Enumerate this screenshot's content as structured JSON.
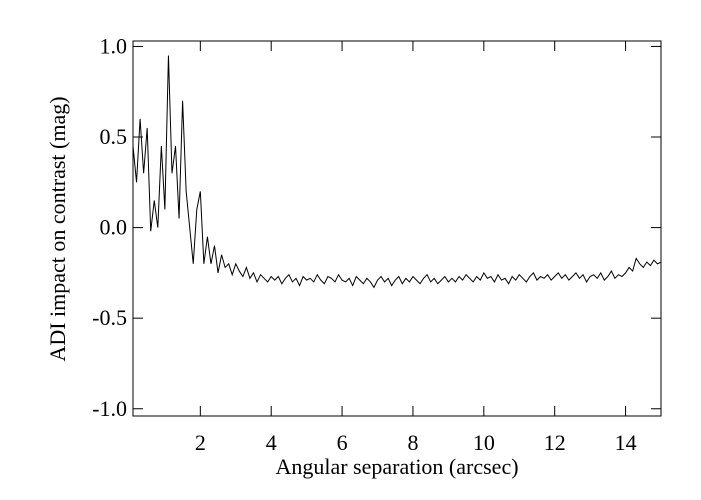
{
  "chart_data": {
    "type": "line",
    "x_label": "Angular separation (arcsec)",
    "y_label": "ADI impact on contrast (mag)",
    "color": "#000000",
    "xlim": [
      0.1,
      15.0
    ],
    "ylim": [
      -1.04,
      1.03
    ],
    "xticks": [
      2,
      4,
      6,
      8,
      10,
      12,
      14
    ],
    "yticks": [
      {
        "value": -1,
        "label": "-1.0"
      },
      -0.5,
      {
        "value": 0,
        "label": "0.0"
      },
      0.5,
      {
        "value": 1,
        "label": "1.0"
      }
    ],
    "x": [
      0.1,
      0.2,
      0.3,
      0.4,
      0.5,
      0.6,
      0.7,
      0.8,
      0.9,
      1.0,
      1.1,
      1.2,
      1.3,
      1.4,
      1.5,
      1.6,
      1.7,
      1.8,
      1.9,
      2.0,
      2.1,
      2.2,
      2.3,
      2.4,
      2.5,
      2.6,
      2.7,
      2.8,
      2.9,
      3.0,
      3.1,
      3.2,
      3.3,
      3.4,
      3.5,
      3.6,
      3.7,
      3.8,
      3.9,
      4.0,
      4.1,
      4.2,
      4.3,
      4.4,
      4.5,
      4.6,
      4.7,
      4.8,
      4.9,
      5.0,
      5.1,
      5.2,
      5.3,
      5.4,
      5.5,
      5.6,
      5.7,
      5.8,
      5.9,
      6.0,
      6.1,
      6.2,
      6.3,
      6.4,
      6.5,
      6.6,
      6.7,
      6.8,
      6.9,
      7.0,
      7.1,
      7.2,
      7.3,
      7.4,
      7.5,
      7.6,
      7.7,
      7.8,
      7.9,
      8.0,
      8.1,
      8.2,
      8.3,
      8.4,
      8.5,
      8.6,
      8.7,
      8.8,
      8.9,
      9.0,
      9.1,
      9.2,
      9.3,
      9.4,
      9.5,
      9.6,
      9.7,
      9.8,
      9.9,
      10.0,
      10.1,
      10.2,
      10.3,
      10.4,
      10.5,
      10.6,
      10.7,
      10.8,
      10.9,
      11.0,
      11.1,
      11.2,
      11.3,
      11.4,
      11.5,
      11.6,
      11.7,
      11.8,
      11.9,
      12.0,
      12.1,
      12.2,
      12.3,
      12.4,
      12.5,
      12.6,
      12.7,
      12.8,
      12.9,
      13.0,
      13.1,
      13.2,
      13.3,
      13.4,
      13.5,
      13.6,
      13.7,
      13.8,
      13.9,
      14.0,
      14.1,
      14.2,
      14.3,
      14.4,
      14.5,
      14.6,
      14.7,
      14.8,
      14.9,
      15.0
    ],
    "values": [
      0.45,
      0.25,
      0.6,
      0.3,
      0.55,
      -0.02,
      0.15,
      0.0,
      0.45,
      0.1,
      0.95,
      0.3,
      0.45,
      0.05,
      0.7,
      0.2,
      0.0,
      -0.2,
      0.1,
      0.2,
      -0.2,
      -0.05,
      -0.2,
      -0.1,
      -0.25,
      -0.15,
      -0.22,
      -0.2,
      -0.26,
      -0.2,
      -0.24,
      -0.27,
      -0.22,
      -0.28,
      -0.25,
      -0.3,
      -0.26,
      -0.28,
      -0.3,
      -0.27,
      -0.29,
      -0.27,
      -0.31,
      -0.28,
      -0.26,
      -0.3,
      -0.28,
      -0.32,
      -0.27,
      -0.29,
      -0.28,
      -0.3,
      -0.26,
      -0.29,
      -0.31,
      -0.27,
      -0.28,
      -0.3,
      -0.26,
      -0.29,
      -0.3,
      -0.28,
      -0.32,
      -0.27,
      -0.29,
      -0.31,
      -0.28,
      -0.3,
      -0.33,
      -0.29,
      -0.27,
      -0.3,
      -0.28,
      -0.32,
      -0.29,
      -0.27,
      -0.31,
      -0.28,
      -0.3,
      -0.27,
      -0.29,
      -0.31,
      -0.28,
      -0.26,
      -0.3,
      -0.28,
      -0.31,
      -0.29,
      -0.27,
      -0.3,
      -0.28,
      -0.3,
      -0.27,
      -0.29,
      -0.26,
      -0.28,
      -0.3,
      -0.27,
      -0.29,
      -0.25,
      -0.28,
      -0.27,
      -0.3,
      -0.26,
      -0.29,
      -0.28,
      -0.31,
      -0.27,
      -0.29,
      -0.26,
      -0.28,
      -0.3,
      -0.27,
      -0.25,
      -0.29,
      -0.27,
      -0.28,
      -0.26,
      -0.29,
      -0.27,
      -0.25,
      -0.28,
      -0.26,
      -0.29,
      -0.27,
      -0.25,
      -0.28,
      -0.26,
      -0.3,
      -0.27,
      -0.26,
      -0.28,
      -0.25,
      -0.29,
      -0.27,
      -0.24,
      -0.28,
      -0.26,
      -0.27,
      -0.25,
      -0.22,
      -0.24,
      -0.17,
      -0.2,
      -0.22,
      -0.19,
      -0.21,
      -0.18,
      -0.2,
      -0.19
    ]
  }
}
